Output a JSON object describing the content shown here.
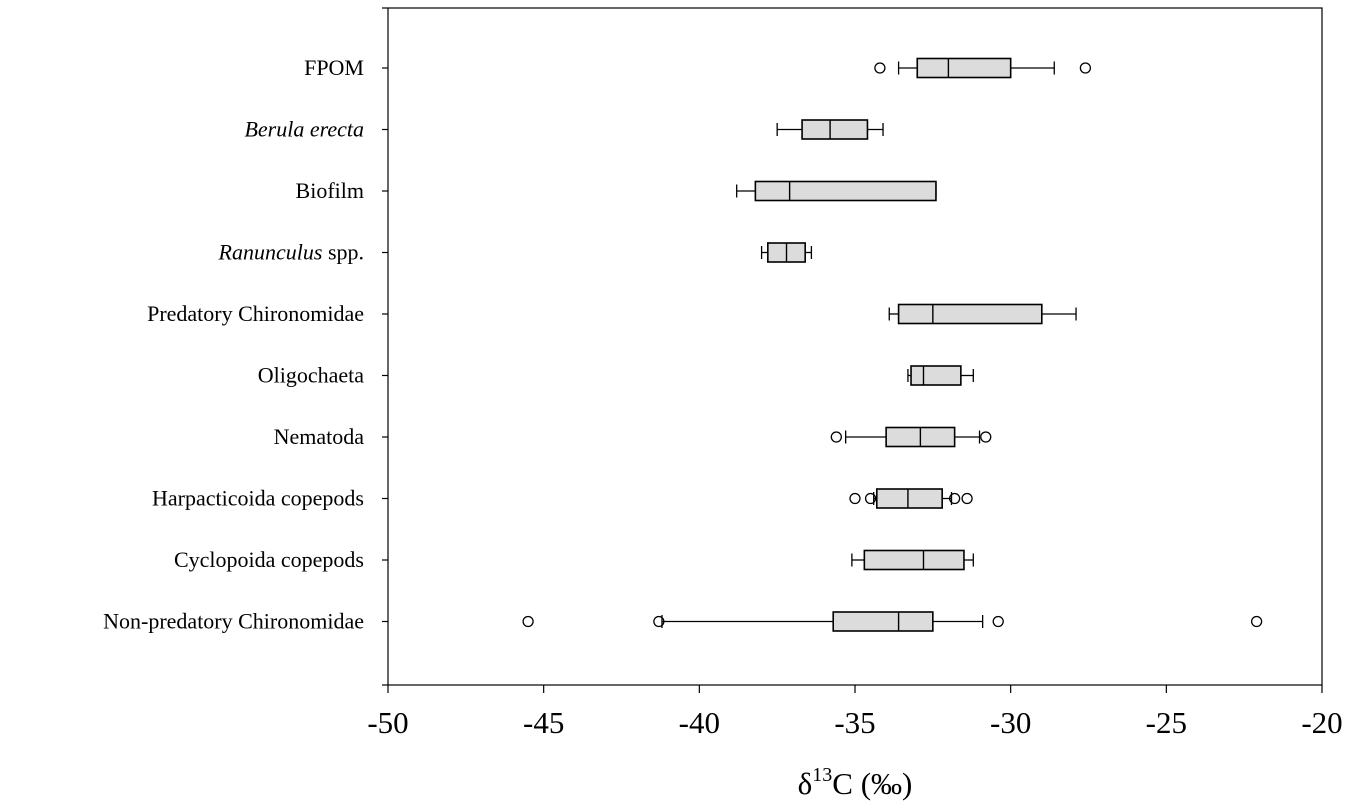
{
  "chart_data": {
    "type": "box",
    "orientation": "horizontal",
    "title": "",
    "xlabel_parts": {
      "delta": "δ",
      "superscript": "13",
      "rest": "C (‰)"
    },
    "xlim": [
      -50,
      -20
    ],
    "xticks": [
      "-50",
      "-45",
      "-40",
      "-35",
      "-30",
      "-25",
      "-20"
    ],
    "grid": false,
    "colors": {
      "box_fill": "#dcdcdc",
      "stroke": "#000000",
      "background": "#ffffff"
    },
    "categories": [
      {
        "label": "FPOM",
        "label_rest": "",
        "italic": false,
        "whisker_low": -33.6,
        "q1": -33.0,
        "median": -32.0,
        "q3": -30.0,
        "whisker_high": -28.6,
        "outliers": [
          -34.2,
          -27.6
        ]
      },
      {
        "label": "Berula erecta",
        "label_rest": "",
        "italic": true,
        "whisker_low": -37.5,
        "q1": -36.7,
        "median": -35.8,
        "q3": -34.6,
        "whisker_high": -34.1,
        "outliers": []
      },
      {
        "label": "Biofilm",
        "label_rest": "",
        "italic": false,
        "whisker_low": -38.8,
        "q1": -38.2,
        "median": -37.1,
        "q3": -32.4,
        "whisker_high": -32.4,
        "outliers": []
      },
      {
        "label": "Ranunculus",
        "label_rest": " spp.",
        "italic": true,
        "whisker_low": -38.0,
        "q1": -37.8,
        "median": -37.2,
        "q3": -36.6,
        "whisker_high": -36.4,
        "outliers": []
      },
      {
        "label": "Predatory Chironomidae",
        "label_rest": "",
        "italic": false,
        "whisker_low": -33.9,
        "q1": -33.6,
        "median": -32.5,
        "q3": -29.0,
        "whisker_high": -27.9,
        "outliers": []
      },
      {
        "label": "Oligochaeta",
        "label_rest": "",
        "italic": false,
        "whisker_low": -33.3,
        "q1": -33.2,
        "median": -32.8,
        "q3": -31.6,
        "whisker_high": -31.2,
        "outliers": []
      },
      {
        "label": "Nematoda",
        "label_rest": "",
        "italic": false,
        "whisker_low": -35.3,
        "q1": -34.0,
        "median": -32.9,
        "q3": -31.8,
        "whisker_high": -31.0,
        "outliers": [
          -35.6,
          -30.8
        ]
      },
      {
        "label": "Harpacticoida copepods",
        "label_rest": "",
        "italic": false,
        "whisker_low": -34.4,
        "q1": -34.3,
        "median": -33.3,
        "q3": -32.2,
        "whisker_high": -31.9,
        "outliers": [
          -35.0,
          -34.5,
          -31.8,
          -31.4
        ]
      },
      {
        "label": "Cyclopoida copepods",
        "label_rest": "",
        "italic": false,
        "whisker_low": -35.1,
        "q1": -34.7,
        "median": -32.8,
        "q3": -31.5,
        "whisker_high": -31.2,
        "outliers": []
      },
      {
        "label": "Non-predatory Chironomidae",
        "label_rest": "",
        "italic": false,
        "whisker_low": -41.2,
        "q1": -35.7,
        "median": -33.6,
        "q3": -32.5,
        "whisker_high": -30.9,
        "outliers": [
          -45.5,
          -41.3,
          -30.4,
          -22.1
        ]
      }
    ]
  }
}
